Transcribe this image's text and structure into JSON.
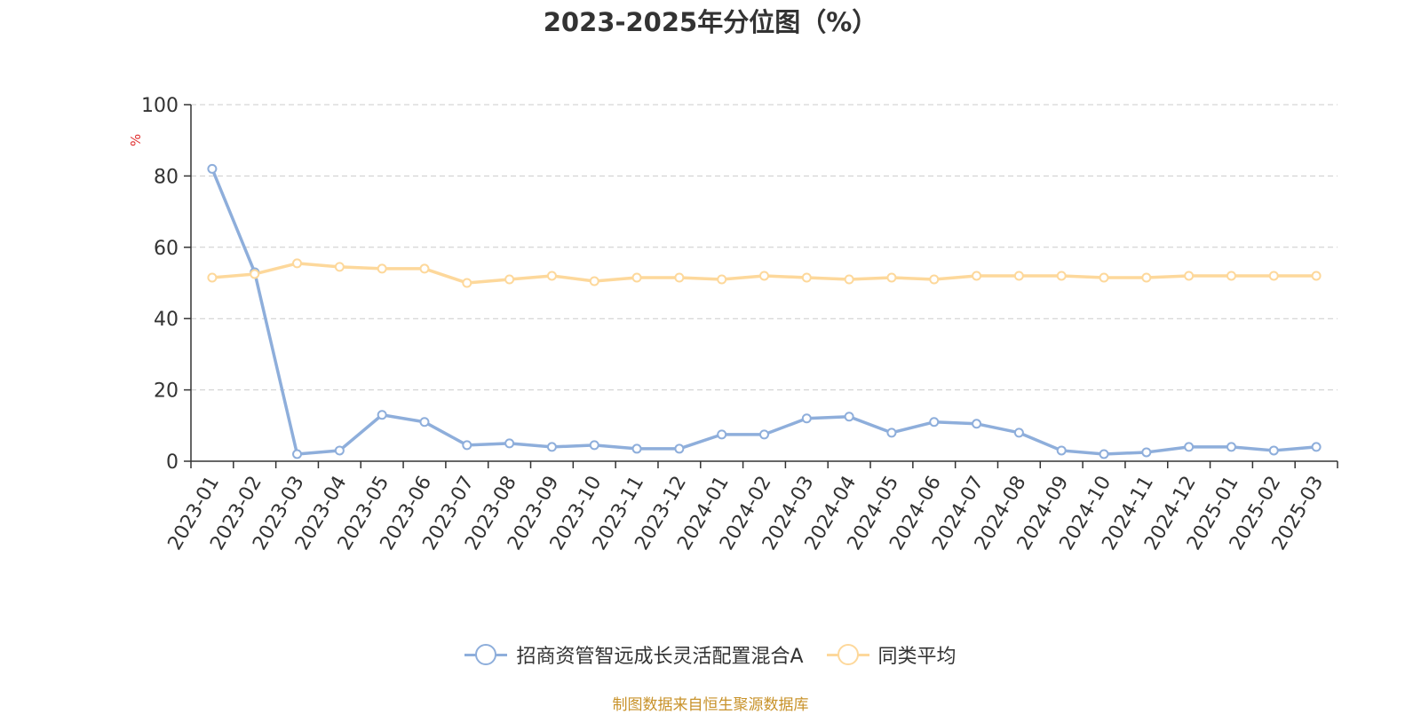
{
  "title": "2023-2025年分位图（%）",
  "source_note": "制图数据来自恒生聚源数据库",
  "colors": {
    "series_a": "#8eaedb",
    "series_b": "#fdd89b",
    "grid": "#cccccc",
    "axis": "#333333",
    "unit_label": "#e03030",
    "text": "#333333"
  },
  "chart_data": {
    "type": "line",
    "title": "2023-2025年分位图（%）",
    "ylabel": "%",
    "ylim": [
      0,
      100
    ],
    "yticks": [
      0,
      20,
      40,
      60,
      80,
      100
    ],
    "grid": "horizontal dashed",
    "legend_position": "bottom-center",
    "categories": [
      "2023-01",
      "2023-02",
      "2023-03",
      "2023-04",
      "2023-05",
      "2023-06",
      "2023-07",
      "2023-08",
      "2023-09",
      "2023-10",
      "2023-11",
      "2023-12",
      "2024-01",
      "2024-02",
      "2024-03",
      "2024-04",
      "2024-05",
      "2024-06",
      "2024-07",
      "2024-08",
      "2024-09",
      "2024-10",
      "2024-11",
      "2024-12",
      "2025-01",
      "2025-02",
      "2025-03"
    ],
    "series": [
      {
        "name": "招商资管智远成长灵活配置混合A",
        "color": "#8eaedb",
        "values": [
          82,
          53,
          2,
          3,
          13,
          11,
          4.5,
          5,
          4,
          4.5,
          3.5,
          3.5,
          7.5,
          7.5,
          12,
          12.5,
          8,
          11,
          10.5,
          8,
          3,
          2,
          2.5,
          4,
          4,
          3,
          4
        ]
      },
      {
        "name": "同类平均",
        "color": "#fdd89b",
        "values": [
          51.5,
          52.5,
          55.5,
          54.5,
          54,
          54,
          50,
          51,
          52,
          50.5,
          51.5,
          51.5,
          51,
          52,
          51.5,
          51,
          51.5,
          51,
          52,
          52,
          52,
          51.5,
          51.5,
          52,
          52,
          52,
          52
        ]
      }
    ]
  }
}
